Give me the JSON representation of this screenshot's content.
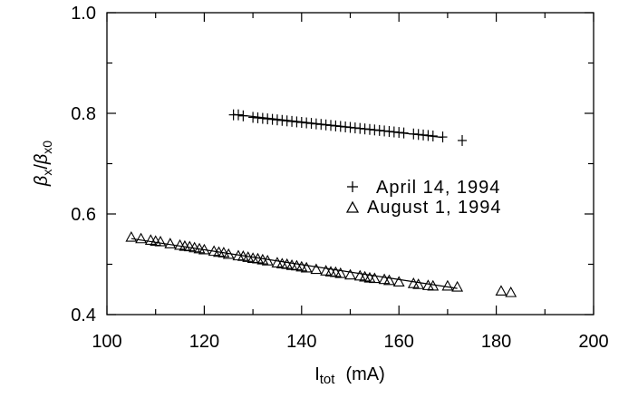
{
  "chart_data": {
    "type": "scatter",
    "xlabel": {
      "main": "I",
      "sub": "tot",
      "unit": "(mA)"
    },
    "ylabel": {
      "beta": "β",
      "sub_num": "x",
      "slash": "/",
      "sub_den": "x0"
    },
    "xlim": [
      100,
      200
    ],
    "ylim": [
      0.4,
      1.0
    ],
    "x_ticks": [
      "100",
      "120",
      "140",
      "160",
      "180",
      "200"
    ],
    "y_ticks": [
      "0.4",
      "0.6",
      "0.8",
      "1.0"
    ],
    "grid": false,
    "legend_position": "right",
    "series": [
      {
        "name": "April 14, 1994",
        "marker": "plus",
        "x": [
          126,
          127,
          128,
          130,
          131,
          132,
          133,
          134,
          135,
          136,
          137,
          138,
          139,
          140,
          141,
          142,
          143,
          144,
          145,
          146,
          147,
          148,
          149,
          150,
          151,
          152,
          153,
          154,
          155,
          156,
          157,
          158,
          159,
          160,
          161,
          163,
          164,
          165,
          166,
          167,
          169,
          173
        ],
        "y": [
          0.797,
          0.797,
          0.795,
          0.792,
          0.791,
          0.79,
          0.789,
          0.788,
          0.787,
          0.786,
          0.785,
          0.784,
          0.783,
          0.782,
          0.781,
          0.78,
          0.779,
          0.778,
          0.777,
          0.776,
          0.775,
          0.774,
          0.773,
          0.772,
          0.771,
          0.77,
          0.769,
          0.768,
          0.767,
          0.766,
          0.765,
          0.764,
          0.763,
          0.762,
          0.761,
          0.759,
          0.758,
          0.757,
          0.756,
          0.755,
          0.753,
          0.746
        ]
      },
      {
        "name": "August 1, 1994",
        "marker": "triangle",
        "x": [
          105,
          107,
          109,
          110,
          111,
          113,
          115,
          116,
          117,
          118,
          119,
          120,
          122,
          123,
          124,
          125,
          127,
          128,
          129,
          130,
          131,
          132,
          133,
          135,
          136,
          137,
          138,
          139,
          140,
          141,
          143,
          145,
          146,
          147,
          148,
          150,
          152,
          153,
          154,
          155,
          157,
          158,
          160,
          163,
          164,
          166,
          167,
          170,
          172,
          181,
          183
        ],
        "y": [
          0.553,
          0.55,
          0.547,
          0.545,
          0.544,
          0.54,
          0.537,
          0.535,
          0.534,
          0.532,
          0.53,
          0.528,
          0.525,
          0.523,
          0.522,
          0.519,
          0.516,
          0.515,
          0.513,
          0.511,
          0.51,
          0.508,
          0.506,
          0.502,
          0.5,
          0.499,
          0.497,
          0.496,
          0.494,
          0.492,
          0.489,
          0.486,
          0.484,
          0.483,
          0.481,
          0.478,
          0.476,
          0.474,
          0.472,
          0.471,
          0.469,
          0.467,
          0.464,
          0.461,
          0.459,
          0.457,
          0.456,
          0.456,
          0.454,
          0.446,
          0.443
        ]
      }
    ],
    "fit_lines": [
      {
        "series": "April 14, 1994",
        "x": [
          126,
          169
        ],
        "y": [
          0.798,
          0.752
        ]
      },
      {
        "series": "August 1, 1994",
        "x": [
          105,
          172
        ],
        "y": [
          0.551,
          0.452
        ]
      }
    ]
  },
  "legend": {
    "items": [
      {
        "symbol": "+",
        "label": "April 14, 1994"
      },
      {
        "symbol": "△",
        "label": "August 1, 1994"
      }
    ]
  }
}
